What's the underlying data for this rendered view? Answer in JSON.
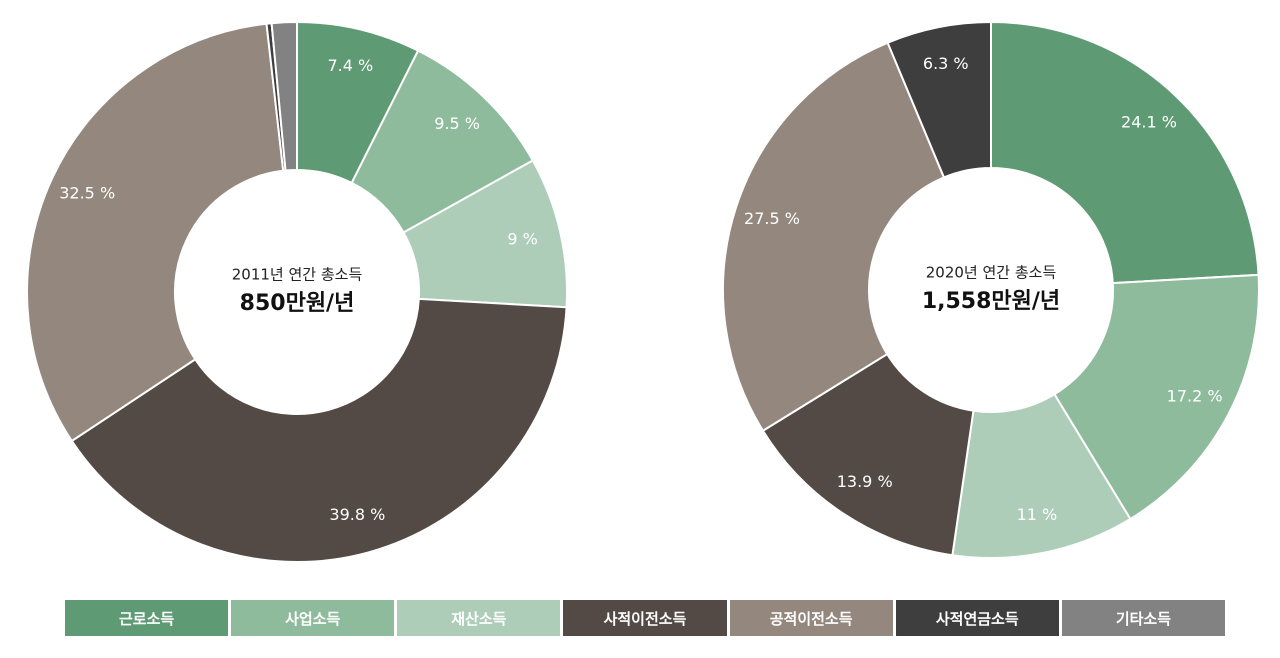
{
  "chart_data": [
    {
      "type": "pie",
      "center_label": "2011년 연간 총소득",
      "center_value": "850만원/년",
      "slices": [
        {
          "category": "근로소득",
          "value": 7.4,
          "label": "7.4 %"
        },
        {
          "category": "사업소득",
          "value": 9.5,
          "label": "9.5 %"
        },
        {
          "category": "재산소득",
          "value": 9.0,
          "label": "9 %"
        },
        {
          "category": "사적이전소득",
          "value": 39.8,
          "label": "39.8 %"
        },
        {
          "category": "공적이전소득",
          "value": 32.5,
          "label": "32.5 %"
        },
        {
          "category": "사적연금소득",
          "value": 0.3,
          "label": ""
        },
        {
          "category": "기타소득",
          "value": 1.5,
          "label": ""
        }
      ]
    },
    {
      "type": "pie",
      "center_label": "2020년 연간 총소득",
      "center_value": "1,558만원/년",
      "slices": [
        {
          "category": "근로소득",
          "value": 24.1,
          "label": "24.1 %"
        },
        {
          "category": "사업소득",
          "value": 17.2,
          "label": "17.2 %"
        },
        {
          "category": "재산소득",
          "value": 11.0,
          "label": "11 %"
        },
        {
          "category": "사적이전소득",
          "value": 13.9,
          "label": "13.9 %"
        },
        {
          "category": "공적이전소득",
          "value": 27.5,
          "label": "27.5 %"
        },
        {
          "category": "사적연금소득",
          "value": 6.3,
          "label": "6.3 %"
        }
      ]
    }
  ],
  "legend": [
    {
      "label": "근로소득",
      "color": "#5e9a73"
    },
    {
      "label": "사업소득",
      "color": "#8fbb9d"
    },
    {
      "label": "재산소득",
      "color": "#adcdb9"
    },
    {
      "label": "사적이전소득",
      "color": "#544a45"
    },
    {
      "label": "공적이전소득",
      "color": "#94877e"
    },
    {
      "label": "사적연금소득",
      "color": "#3e3e3e"
    },
    {
      "label": "기타소득",
      "color": "#828282"
    }
  ]
}
